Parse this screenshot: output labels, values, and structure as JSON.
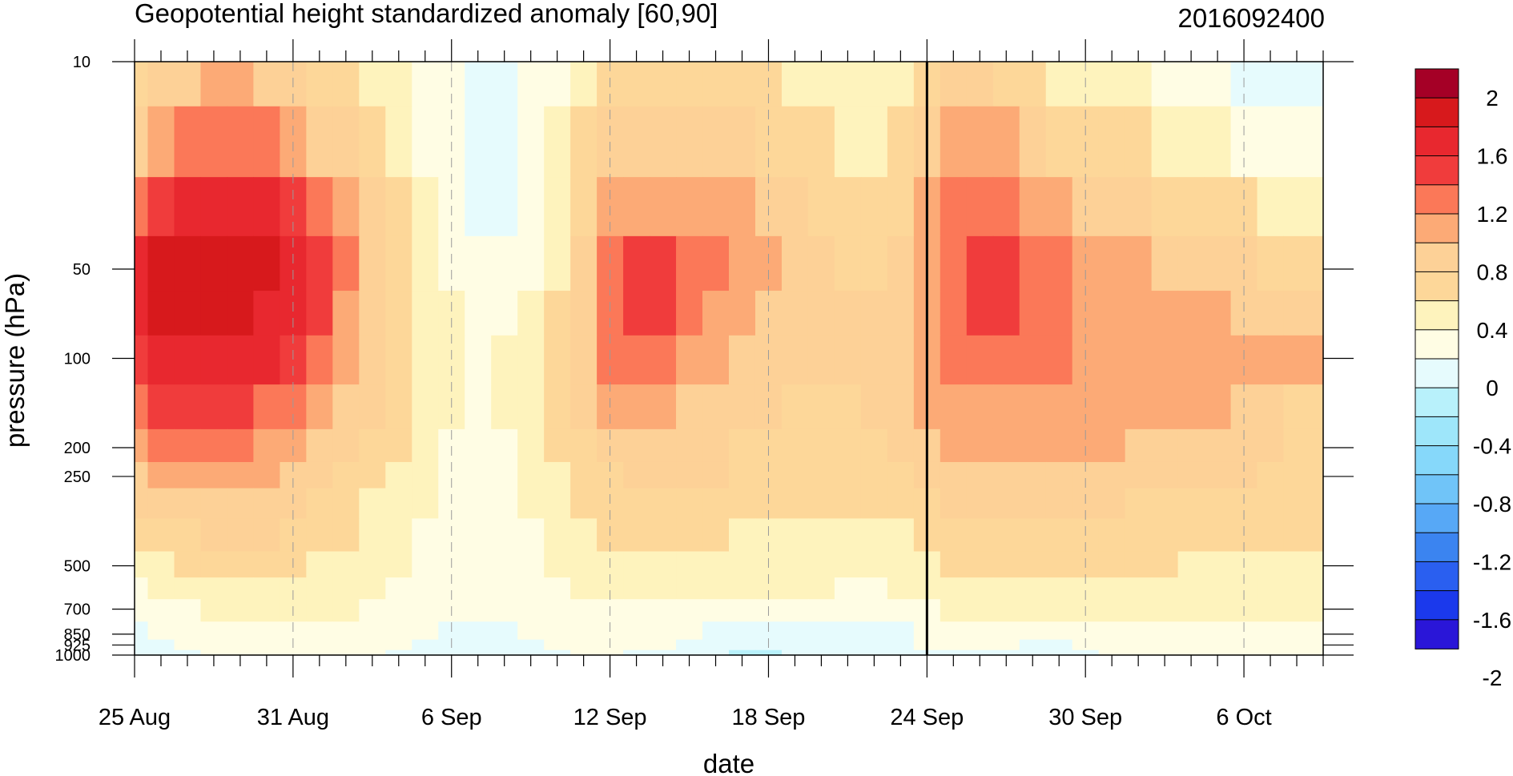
{
  "chart_data": {
    "type": "heatmap",
    "title": "Geopotential height standardized anomaly [60,90]",
    "right_title": "2016092400",
    "xlabel": "date",
    "ylabel": "pressure (hPa)",
    "x_ticks": [
      "25 Aug",
      "31 Aug",
      "6 Sep",
      "12 Sep",
      "18 Sep",
      "24 Sep",
      "30 Sep",
      "6 Oct"
    ],
    "x_dates": [
      "2016-08-25",
      "2016-08-26",
      "2016-08-27",
      "2016-08-28",
      "2016-08-29",
      "2016-08-30",
      "2016-08-31",
      "2016-09-01",
      "2016-09-02",
      "2016-09-03",
      "2016-09-04",
      "2016-09-05",
      "2016-09-06",
      "2016-09-07",
      "2016-09-08",
      "2016-09-09",
      "2016-09-10",
      "2016-09-11",
      "2016-09-12",
      "2016-09-13",
      "2016-09-14",
      "2016-09-15",
      "2016-09-16",
      "2016-09-17",
      "2016-09-18",
      "2016-09-19",
      "2016-09-20",
      "2016-09-21",
      "2016-09-22",
      "2016-09-23",
      "2016-09-24",
      "2016-09-25",
      "2016-09-26",
      "2016-09-27",
      "2016-09-28",
      "2016-09-29",
      "2016-09-30",
      "2016-10-01",
      "2016-10-02",
      "2016-10-03",
      "2016-10-04",
      "2016-10-05",
      "2016-10-06",
      "2016-10-07",
      "2016-10-08",
      "2016-10-09"
    ],
    "current_date": "2016-09-24",
    "y_ticks": [
      10,
      50,
      100,
      200,
      250,
      500,
      700,
      850,
      925,
      1000
    ],
    "y_tick_labels": [
      "10",
      "50",
      "100",
      "200",
      "250",
      "500",
      "700",
      "850",
      "925",
      "1000"
    ],
    "y_scale": "log",
    "ylim": [
      1000,
      10
    ],
    "colorbar": {
      "levels": [
        -2,
        -1.8,
        -1.6,
        -1.4,
        -1.2,
        -1.0,
        -0.8,
        -0.6,
        -0.4,
        -0.2,
        0,
        0.2,
        0.4,
        0.6,
        0.8,
        1.0,
        1.2,
        1.4,
        1.6,
        1.8,
        2
      ],
      "labels": [
        "2",
        "1.6",
        "1.2",
        "0.8",
        "0.4",
        "0",
        "-0.4",
        "-0.8",
        "-1.2",
        "-1.6",
        "-2"
      ],
      "colors_top_to_bottom": [
        "#a50026",
        "#d7191c",
        "#e8282f",
        "#f03c3c",
        "#fb7858",
        "#fcaa76",
        "#fdd197",
        "#fdd799",
        "#fef3bd",
        "#fffde4",
        "#e6fbfd",
        "#b8f1fb",
        "#9ee6fa",
        "#86d8fa",
        "#70c4f8",
        "#57a8f6",
        "#3b84f0",
        "#2a5ff0",
        "#1b39ec",
        "#2a16d8"
      ]
    },
    "levels_hPa": [
      10,
      20,
      30,
      50,
      70,
      100,
      150,
      200,
      250,
      300,
      400,
      500,
      600,
      700,
      850,
      925,
      1000
    ],
    "data_note_levels": "rows follow levels_hPa, columns follow x_dates",
    "values": [
      [
        0.5,
        0.6,
        0.7,
        0.8,
        0.8,
        0.7,
        0.6,
        0.5,
        0.4,
        0.3,
        0.2,
        0.1,
        0.0,
        -0.1,
        -0.1,
        0.0,
        0.1,
        0.3,
        0.4,
        0.5,
        0.5,
        0.5,
        0.5,
        0.5,
        0.4,
        0.3,
        0.2,
        0.2,
        0.3,
        0.3,
        0.5,
        0.6,
        0.6,
        0.5,
        0.4,
        0.3,
        0.3,
        0.2,
        0.2,
        0.1,
        0.1,
        0.0,
        -0.1,
        -0.2,
        -0.2,
        -0.2
      ],
      [
        0.7,
        0.9,
        1.0,
        1.1,
        1.1,
        1.0,
        0.9,
        0.7,
        0.6,
        0.5,
        0.3,
        0.1,
        0.0,
        -0.1,
        -0.1,
        0.0,
        0.2,
        0.4,
        0.6,
        0.7,
        0.7,
        0.6,
        0.6,
        0.6,
        0.5,
        0.4,
        0.4,
        0.3,
        0.3,
        0.4,
        0.6,
        0.8,
        0.9,
        0.8,
        0.6,
        0.5,
        0.5,
        0.4,
        0.4,
        0.3,
        0.3,
        0.2,
        0.1,
        0.0,
        0.0,
        0.0
      ],
      [
        1.1,
        1.3,
        1.4,
        1.5,
        1.5,
        1.4,
        1.2,
        1.0,
        0.8,
        0.6,
        0.4,
        0.2,
        0.0,
        -0.1,
        -0.1,
        0.0,
        0.2,
        0.5,
        0.8,
        0.9,
        0.9,
        0.8,
        0.8,
        0.8,
        0.7,
        0.6,
        0.5,
        0.4,
        0.4,
        0.5,
        0.8,
        1.0,
        1.1,
        1.0,
        0.9,
        0.8,
        0.7,
        0.6,
        0.6,
        0.5,
        0.5,
        0.4,
        0.4,
        0.3,
        0.3,
        0.3
      ],
      [
        1.4,
        1.6,
        1.7,
        1.7,
        1.7,
        1.6,
        1.5,
        1.3,
        1.0,
        0.7,
        0.5,
        0.2,
        0.1,
        0.0,
        0.0,
        0.1,
        0.3,
        0.7,
        1.0,
        1.2,
        1.2,
        1.1,
        1.0,
        0.9,
        0.8,
        0.7,
        0.6,
        0.5,
        0.5,
        0.6,
        0.9,
        1.1,
        1.3,
        1.2,
        1.1,
        1.0,
        0.9,
        0.8,
        0.8,
        0.7,
        0.7,
        0.6,
        0.6,
        0.5,
        0.5,
        0.5
      ],
      [
        1.4,
        1.6,
        1.6,
        1.6,
        1.6,
        1.5,
        1.4,
        1.2,
        0.9,
        0.7,
        0.5,
        0.3,
        0.2,
        0.1,
        0.1,
        0.2,
        0.4,
        0.7,
        1.0,
        1.2,
        1.2,
        1.0,
        0.9,
        0.8,
        0.7,
        0.7,
        0.6,
        0.6,
        0.6,
        0.7,
        0.9,
        1.1,
        1.3,
        1.2,
        1.1,
        1.0,
        0.9,
        0.9,
        0.9,
        0.8,
        0.8,
        0.8,
        0.7,
        0.7,
        0.7,
        0.7
      ],
      [
        1.3,
        1.4,
        1.5,
        1.5,
        1.5,
        1.4,
        1.2,
        1.0,
        0.8,
        0.6,
        0.5,
        0.3,
        0.2,
        0.1,
        0.2,
        0.3,
        0.4,
        0.7,
        1.0,
        1.1,
        1.0,
        0.9,
        0.8,
        0.7,
        0.6,
        0.6,
        0.6,
        0.6,
        0.6,
        0.7,
        0.9,
        1.0,
        1.1,
        1.1,
        1.0,
        1.0,
        0.9,
        0.9,
        0.9,
        0.9,
        0.9,
        0.8,
        0.8,
        0.8,
        0.8,
        0.8
      ],
      [
        1.1,
        1.2,
        1.2,
        1.2,
        1.2,
        1.1,
        1.0,
        0.9,
        0.7,
        0.6,
        0.4,
        0.3,
        0.2,
        0.1,
        0.2,
        0.3,
        0.4,
        0.6,
        0.8,
        0.9,
        0.8,
        0.7,
        0.7,
        0.6,
        0.6,
        0.5,
        0.5,
        0.5,
        0.6,
        0.6,
        0.8,
        0.9,
        0.9,
        0.9,
        0.9,
        0.9,
        0.9,
        0.8,
        0.8,
        0.8,
        0.8,
        0.8,
        0.7,
        0.6,
        0.5,
        0.5
      ],
      [
        0.9,
        1.0,
        1.0,
        1.0,
        1.0,
        0.9,
        0.8,
        0.7,
        0.6,
        0.5,
        0.4,
        0.3,
        0.1,
        0.1,
        0.1,
        0.2,
        0.4,
        0.5,
        0.6,
        0.7,
        0.7,
        0.6,
        0.6,
        0.5,
        0.5,
        0.5,
        0.5,
        0.5,
        0.5,
        0.6,
        0.7,
        0.8,
        0.8,
        0.8,
        0.8,
        0.8,
        0.8,
        0.8,
        0.7,
        0.7,
        0.7,
        0.7,
        0.6,
        0.6,
        0.5,
        0.5
      ],
      [
        0.7,
        0.8,
        0.8,
        0.8,
        0.8,
        0.8,
        0.7,
        0.6,
        0.5,
        0.4,
        0.3,
        0.2,
        0.1,
        0.0,
        0.1,
        0.2,
        0.3,
        0.4,
        0.5,
        0.6,
        0.6,
        0.6,
        0.6,
        0.5,
        0.5,
        0.5,
        0.5,
        0.5,
        0.5,
        0.5,
        0.6,
        0.7,
        0.7,
        0.7,
        0.7,
        0.7,
        0.7,
        0.7,
        0.6,
        0.6,
        0.6,
        0.6,
        0.6,
        0.5,
        0.5,
        0.5
      ],
      [
        0.6,
        0.6,
        0.7,
        0.7,
        0.7,
        0.7,
        0.6,
        0.5,
        0.4,
        0.3,
        0.3,
        0.2,
        0.1,
        0.0,
        0.1,
        0.2,
        0.3,
        0.4,
        0.4,
        0.5,
        0.5,
        0.5,
        0.5,
        0.5,
        0.4,
        0.4,
        0.4,
        0.4,
        0.4,
        0.4,
        0.5,
        0.6,
        0.6,
        0.6,
        0.6,
        0.6,
        0.6,
        0.6,
        0.5,
        0.5,
        0.5,
        0.5,
        0.5,
        0.5,
        0.5,
        0.5
      ],
      [
        0.4,
        0.5,
        0.5,
        0.6,
        0.6,
        0.6,
        0.5,
        0.4,
        0.4,
        0.3,
        0.2,
        0.1,
        0.1,
        0.0,
        0.0,
        0.1,
        0.2,
        0.3,
        0.4,
        0.4,
        0.4,
        0.4,
        0.4,
        0.3,
        0.3,
        0.3,
        0.3,
        0.3,
        0.3,
        0.3,
        0.4,
        0.5,
        0.5,
        0.5,
        0.5,
        0.5,
        0.5,
        0.5,
        0.5,
        0.5,
        0.4,
        0.4,
        0.4,
        0.4,
        0.4,
        0.4
      ],
      [
        0.3,
        0.3,
        0.4,
        0.4,
        0.4,
        0.4,
        0.4,
        0.3,
        0.3,
        0.2,
        0.2,
        0.1,
        0.0,
        0.0,
        0.0,
        0.1,
        0.2,
        0.2,
        0.3,
        0.3,
        0.3,
        0.3,
        0.3,
        0.3,
        0.2,
        0.2,
        0.2,
        0.2,
        0.2,
        0.2,
        0.3,
        0.4,
        0.4,
        0.4,
        0.4,
        0.4,
        0.4,
        0.4,
        0.4,
        0.4,
        0.3,
        0.3,
        0.3,
        0.3,
        0.3,
        0.3
      ],
      [
        0.1,
        0.2,
        0.2,
        0.3,
        0.3,
        0.3,
        0.3,
        0.3,
        0.2,
        0.2,
        0.1,
        0.1,
        0.0,
        0.0,
        0.0,
        0.1,
        0.1,
        0.2,
        0.2,
        0.2,
        0.2,
        0.2,
        0.2,
        0.2,
        0.2,
        0.2,
        0.2,
        0.1,
        0.1,
        0.2,
        0.2,
        0.3,
        0.3,
        0.3,
        0.3,
        0.3,
        0.3,
        0.3,
        0.3,
        0.3,
        0.3,
        0.3,
        0.3,
        0.3,
        0.3,
        0.3
      ],
      [
        0.0,
        0.1,
        0.1,
        0.2,
        0.2,
        0.2,
        0.2,
        0.2,
        0.2,
        0.1,
        0.1,
        0.0,
        0.0,
        0.0,
        0.0,
        0.0,
        0.1,
        0.1,
        0.1,
        0.1,
        0.1,
        0.1,
        0.1,
        0.1,
        0.1,
        0.1,
        0.1,
        0.1,
        0.1,
        0.1,
        0.1,
        0.2,
        0.2,
        0.2,
        0.2,
        0.2,
        0.2,
        0.2,
        0.2,
        0.2,
        0.2,
        0.2,
        0.2,
        0.2,
        0.2,
        0.2
      ],
      [
        -0.1,
        0.0,
        0.0,
        0.1,
        0.1,
        0.1,
        0.1,
        0.1,
        0.1,
        0.1,
        0.0,
        0.0,
        -0.1,
        -0.1,
        -0.1,
        0.0,
        0.0,
        0.0,
        0.0,
        0.0,
        0.0,
        0.0,
        -0.1,
        -0.1,
        -0.1,
        -0.1,
        -0.1,
        -0.1,
        -0.1,
        -0.1,
        0.0,
        0.1,
        0.1,
        0.1,
        0.0,
        0.0,
        0.1,
        0.1,
        0.1,
        0.1,
        0.1,
        0.1,
        0.1,
        0.1,
        0.1,
        0.1
      ],
      [
        -0.1,
        -0.1,
        0.0,
        0.0,
        0.0,
        0.1,
        0.1,
        0.1,
        0.0,
        0.0,
        0.0,
        -0.1,
        -0.1,
        -0.1,
        -0.1,
        -0.1,
        0.0,
        0.0,
        0.0,
        0.0,
        0.0,
        -0.1,
        -0.1,
        -0.2,
        -0.2,
        -0.2,
        -0.1,
        -0.1,
        -0.1,
        -0.1,
        0.0,
        0.0,
        0.0,
        0.0,
        -0.1,
        -0.1,
        0.0,
        0.0,
        0.0,
        0.1,
        0.1,
        0.1,
        0.1,
        0.1,
        0.1,
        0.1
      ],
      [
        -0.2,
        -0.1,
        -0.1,
        0.0,
        0.0,
        0.0,
        0.0,
        0.0,
        0.0,
        0.0,
        -0.1,
        -0.1,
        -0.2,
        -0.2,
        -0.2,
        -0.1,
        -0.1,
        0.0,
        0.0,
        -0.1,
        -0.1,
        -0.2,
        -0.2,
        -0.3,
        -0.3,
        -0.2,
        -0.2,
        -0.2,
        -0.2,
        -0.2,
        -0.1,
        -0.1,
        -0.1,
        -0.1,
        -0.1,
        -0.1,
        -0.1,
        0.0,
        0.0,
        0.0,
        0.0,
        0.0,
        0.0,
        0.0,
        0.0,
        0.0
      ]
    ]
  }
}
